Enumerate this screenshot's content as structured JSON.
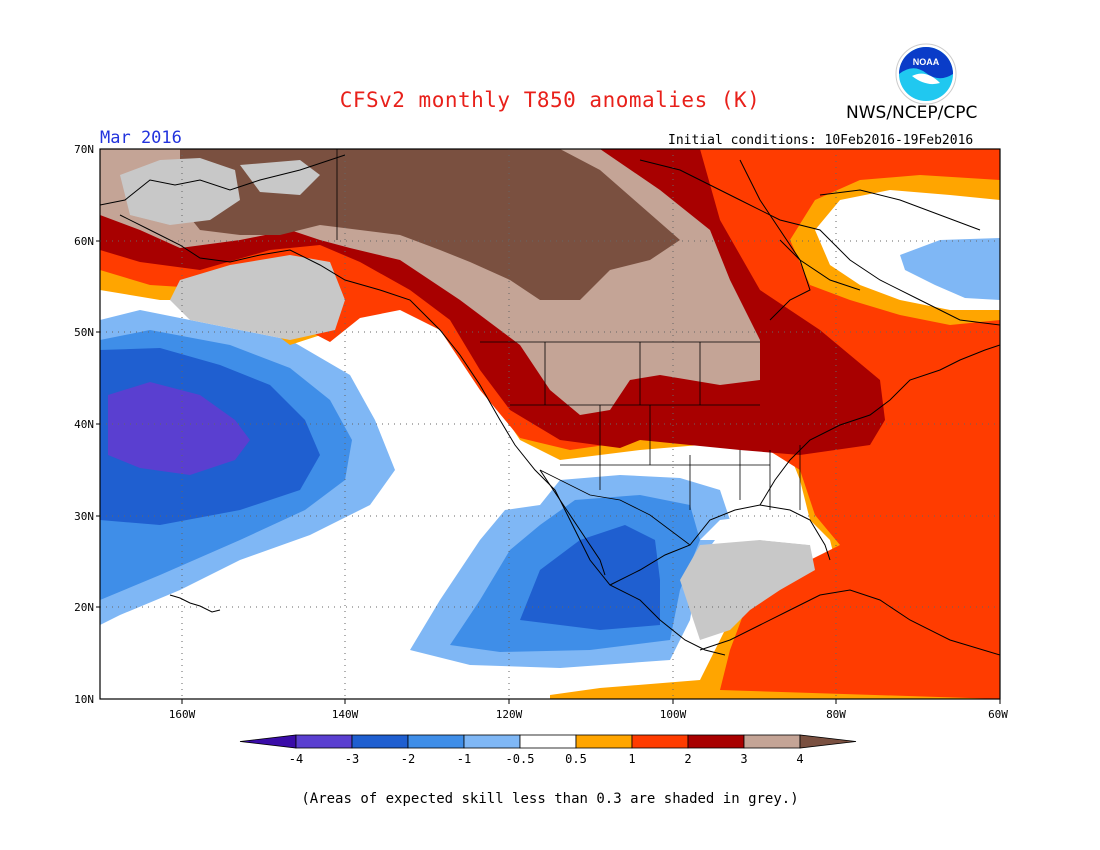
{
  "title": "CFSv2 monthly T850 anomalies (K)",
  "organization": "NWS/NCEP/CPC",
  "logo_text": "NOAA",
  "valid_month": "Mar 2016",
  "initial_conditions": "Initial conditions: 10Feb2016-19Feb2016",
  "footnote": "(Areas of expected skill less than 0.3 are shaded in grey.)",
  "lat_labels": [
    "70N",
    "60N",
    "50N",
    "40N",
    "30N",
    "20N",
    "10N"
  ],
  "lon_labels": [
    "160W",
    "140W",
    "120W",
    "100W",
    "80W",
    "60W"
  ],
  "colorbar": {
    "tick_labels": [
      "-4",
      "-3",
      "-2",
      "-1",
      "-0.5",
      "0.5",
      "1",
      "2",
      "3",
      "4"
    ],
    "colors": [
      "#3a0ca8",
      "#5a3fd0",
      "#1f5fd0",
      "#3f8ee8",
      "#7fb7f5",
      "#ffffff",
      "#ffa500",
      "#ff3c00",
      "#a80000",
      "#c4a496",
      "#7a5040"
    ]
  },
  "colors": {
    "title": "#e8201a",
    "month": "#2233dd",
    "skill_grey": "#c8c8c8",
    "noaa_blue": "#0a3cc8",
    "noaa_cyan": "#20c8f0"
  }
}
